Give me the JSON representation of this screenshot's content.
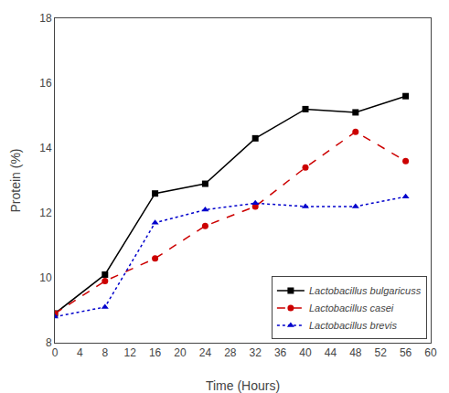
{
  "chart_data": {
    "type": "line",
    "x": [
      0,
      8,
      16,
      24,
      32,
      40,
      48,
      56
    ],
    "series": [
      {
        "name": "Lactobacillus bulgaricuss",
        "color": "#000000",
        "marker": "square",
        "line_style": "solid",
        "values": [
          8.9,
          10.1,
          12.6,
          12.9,
          14.3,
          15.2,
          15.1,
          15.6
        ]
      },
      {
        "name": "Lactobacillus casei",
        "color": "#cc0000",
        "marker": "circle",
        "line_style": "dashed",
        "values": [
          8.9,
          9.9,
          10.6,
          11.6,
          12.2,
          13.4,
          14.5,
          13.6
        ]
      },
      {
        "name": "Lactobacillus brevis",
        "color": "#0000cc",
        "marker": "triangle",
        "line_style": "dotted",
        "values": [
          8.8,
          9.1,
          11.7,
          12.1,
          12.3,
          12.2,
          12.2,
          12.5
        ]
      }
    ],
    "xlabel": "Time (Hours)",
    "ylabel": "Protein (%)",
    "xlim": [
      0,
      60
    ],
    "ylim": [
      8,
      18
    ],
    "xticks": [
      0,
      4,
      8,
      12,
      16,
      20,
      24,
      28,
      32,
      36,
      40,
      44,
      48,
      52,
      56,
      60
    ],
    "yticks": [
      8,
      10,
      12,
      14,
      16,
      18
    ],
    "grid": false,
    "legend": "lower right"
  }
}
